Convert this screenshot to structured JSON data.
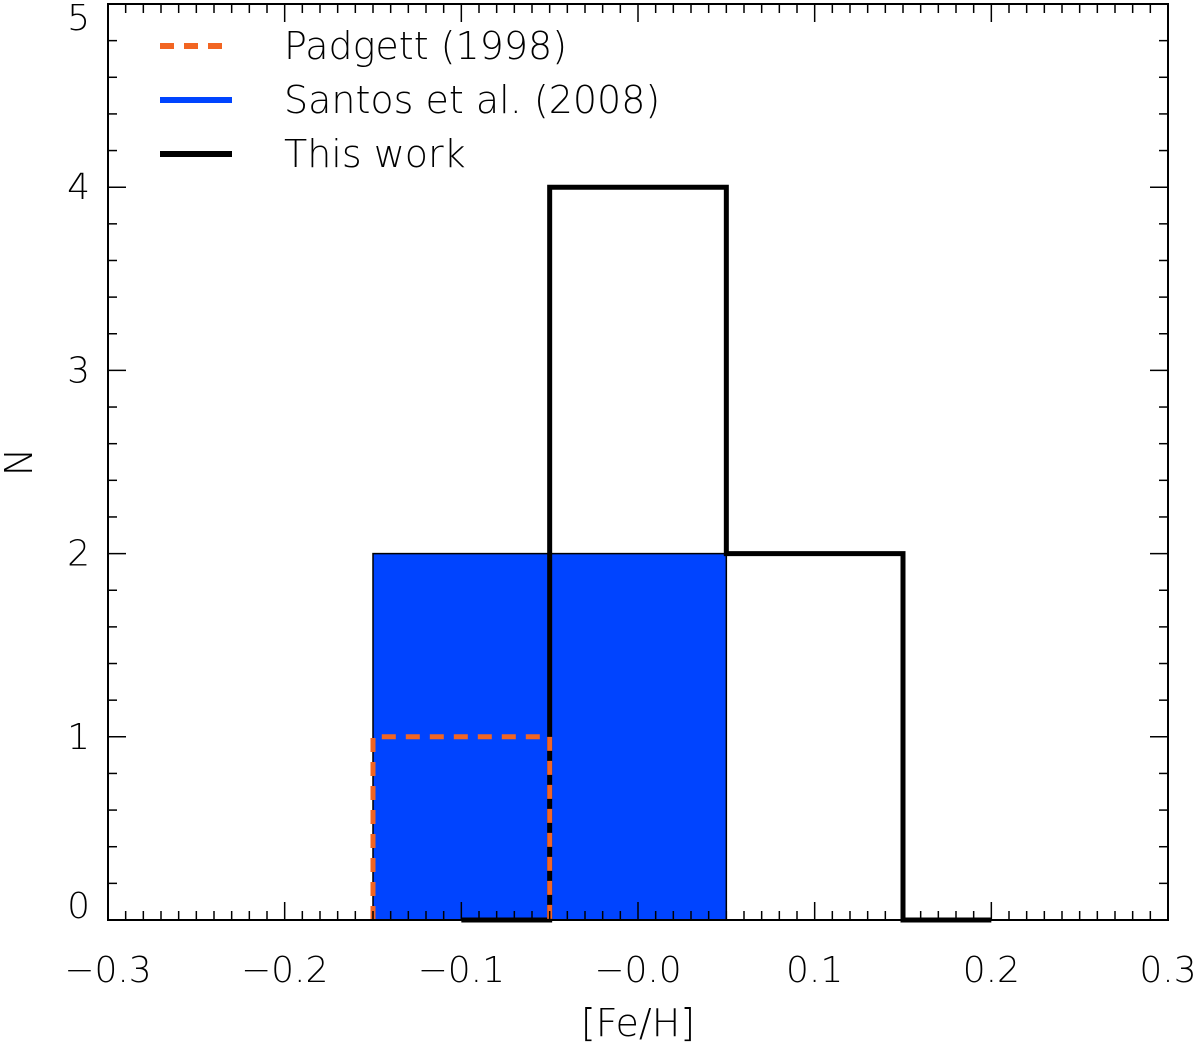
{
  "chart_data": {
    "type": "bar",
    "xlabel": "[Fe/H]",
    "ylabel": "N",
    "xlim": [
      -0.3,
      0.3
    ],
    "ylim": [
      0,
      5
    ],
    "x_ticks": [
      -0.3,
      -0.2,
      -0.1,
      0.0,
      0.1,
      0.2,
      0.3
    ],
    "x_tick_labels": [
      "−0.3",
      "−0.2",
      "−0.1",
      "−0.0",
      "0.1",
      "0.2",
      "0.3"
    ],
    "y_ticks": [
      0,
      1,
      2,
      3,
      4,
      5
    ],
    "y_tick_labels": [
      "0",
      "1",
      "2",
      "3",
      "4",
      "5"
    ],
    "grid": false,
    "legend_position": "top-left",
    "bin_edges": [
      -0.15,
      -0.05,
      0.05,
      0.15
    ],
    "series": [
      {
        "name": "Padgett (1998)",
        "style": "dashed",
        "color": "#f26522",
        "bins": [
          {
            "x0": -0.15,
            "x1": -0.05,
            "value": 1
          }
        ]
      },
      {
        "name": "Santos et al. (2008)",
        "style": "filled",
        "color": "#0044ff",
        "bins": [
          {
            "x0": -0.15,
            "x1": 0.05,
            "value": 2
          }
        ]
      },
      {
        "name": "This work",
        "style": "step",
        "color": "#000000",
        "steps": [
          {
            "x0": -0.1,
            "x1": -0.05,
            "value": 0
          },
          {
            "x0": -0.05,
            "x1": 0.05,
            "value": 4
          },
          {
            "x0": 0.05,
            "x1": 0.15,
            "value": 2
          },
          {
            "x0": 0.15,
            "x1": 0.2,
            "value": 0
          }
        ]
      }
    ]
  }
}
